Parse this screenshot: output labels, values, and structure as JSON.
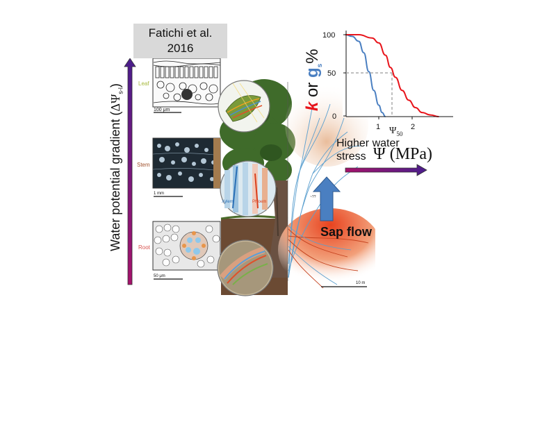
{
  "citation": {
    "line1": "Fatichi et al.",
    "line2": "2016"
  },
  "gradient_axis": {
    "label": "Water potential gradient (",
    "symbol": "ΔΨ",
    "subscript": "s-l",
    "close": ")"
  },
  "tissues": {
    "leaf": {
      "label": "Leaf",
      "scale": "100 μm",
      "color": "#a6b83c"
    },
    "stem": {
      "label": "Stem",
      "scale": "1 mm",
      "color": "#a0522d"
    },
    "root": {
      "label": "Root",
      "scale": "50 μm",
      "color": "#d9534f"
    }
  },
  "zoom_labels": {
    "xylem": "Xylem",
    "phloem": "Phloem"
  },
  "tree": {
    "scale_bar": "10 m",
    "small_text": "~??"
  },
  "sap_flow": {
    "label": "Sap flow"
  },
  "stress_arrow": {
    "line1": "Higher water",
    "line2": "stress",
    "unit": "Ψ (MPa)"
  },
  "inset_plot": {
    "ylabel_prefix": "% ",
    "ylabel_gs": "g",
    "ylabel_gs_sub": "s",
    "ylabel_or": " or",
    "ylabel_k": "k",
    "yticks": [
      "100",
      "50",
      "0"
    ],
    "xticks": [
      "1",
      "2"
    ],
    "psi50_label": "Ψ",
    "psi50_sub": "50",
    "gs_color": "#4a7fc1",
    "k_color": "#e8141b"
  },
  "chart_data": {
    "type": "line",
    "ylim": [
      0,
      100
    ],
    "xlim": [
      0,
      2.8
    ],
    "series": [
      {
        "x": [
          0.0,
          0.2,
          0.4,
          0.55,
          0.7,
          0.85,
          1.0,
          1.1,
          1.2
        ],
        "values": [
          100,
          98,
          92,
          78,
          55,
          32,
          14,
          5,
          0
        ]
      },
      {
        "x": [
          0.0,
          0.4,
          0.8,
          1.0,
          1.2,
          1.35,
          1.5,
          1.7,
          1.9,
          2.1,
          2.3,
          2.55,
          2.8
        ],
        "values": [
          100,
          100,
          96,
          90,
          75,
          60,
          48,
          32,
          20,
          11,
          5,
          2,
          0
        ]
      }
    ],
    "annotations": [
      {
        "text": "Ψ50",
        "x": 1.35,
        "y": 50
      }
    ]
  }
}
